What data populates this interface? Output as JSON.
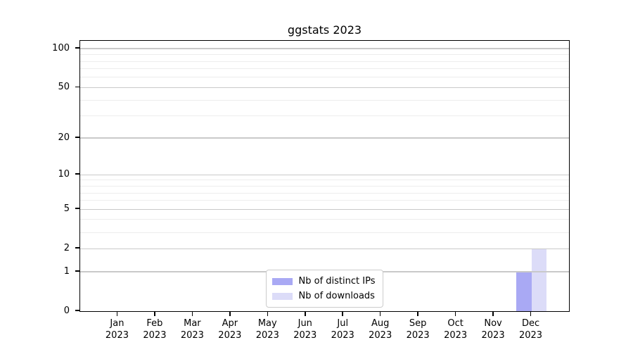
{
  "title": "ggstats 2023",
  "chart_data": {
    "type": "bar",
    "title": "ggstats 2023",
    "categories": [
      "Jan 2023",
      "Feb 2023",
      "Mar 2023",
      "Apr 2023",
      "May 2023",
      "Jun 2023",
      "Jul 2023",
      "Aug 2023",
      "Sep 2023",
      "Oct 2023",
      "Nov 2023",
      "Dec 2023"
    ],
    "series": [
      {
        "name": "Nb of distinct IPs",
        "color": "#a9a9f4",
        "values": [
          0,
          0,
          0,
          0,
          0,
          0,
          0,
          0,
          0,
          0,
          0,
          1
        ]
      },
      {
        "name": "Nb of downloads",
        "color": "#dcdcf8",
        "values": [
          0,
          0,
          0,
          0,
          0,
          0,
          0,
          0,
          0,
          0,
          0,
          2
        ]
      }
    ],
    "xlabel": "",
    "ylabel": "",
    "yscale": "log1p",
    "ylim": [
      0,
      115
    ],
    "yticks": [
      0,
      1,
      2,
      5,
      10,
      20,
      50,
      100
    ],
    "yticks_minor": [
      3,
      4,
      6,
      7,
      8,
      9,
      30,
      40,
      60,
      70,
      80,
      90
    ],
    "grid": "horizontal",
    "legend_position": "lower center"
  },
  "colors": {
    "bar_distinct_ips": "#a9a9f4",
    "bar_downloads": "#dcdcf8",
    "major_grid": "#c9c9c9",
    "minor_grid": "#ededed",
    "axis": "#000000",
    "background": "#ffffff",
    "legend_border": "#cccccc"
  }
}
